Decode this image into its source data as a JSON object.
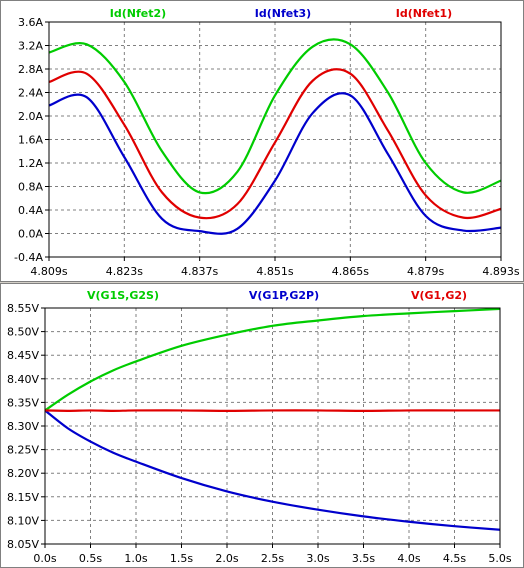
{
  "chart_data": [
    {
      "type": "line",
      "grid": true,
      "xlim": [
        4.809,
        4.893
      ],
      "ylim": [
        -0.4,
        3.6
      ],
      "x_ticks": [
        "4.809s",
        "4.823s",
        "4.837s",
        "4.851s",
        "4.865s",
        "4.879s",
        "4.893s"
      ],
      "y_ticks": [
        "3.6A",
        "3.2A",
        "2.8A",
        "2.4A",
        "2.0A",
        "1.6A",
        "1.2A",
        "0.8A",
        "0.4A",
        "0.0A",
        "-0.4A"
      ],
      "x": [
        4.809,
        4.816,
        4.823,
        4.83,
        4.837,
        4.844,
        4.851,
        4.858,
        4.865,
        4.872,
        4.879,
        4.886,
        4.893
      ],
      "series": [
        {
          "name": "Id(Nfet2)",
          "color": "#00cc00",
          "values": [
            3.08,
            3.22,
            2.58,
            1.4,
            0.7,
            1.05,
            2.35,
            3.18,
            3.22,
            2.4,
            1.2,
            0.7,
            0.9
          ]
        },
        {
          "name": "Id(Nfet3)",
          "color": "#0000cc",
          "values": [
            2.18,
            2.32,
            1.3,
            0.25,
            0.04,
            0.08,
            0.9,
            2.05,
            2.35,
            1.35,
            0.3,
            0.05,
            0.1
          ]
        },
        {
          "name": "Id(Nfet1)",
          "color": "#e00000",
          "values": [
            2.58,
            2.72,
            1.85,
            0.7,
            0.27,
            0.5,
            1.55,
            2.6,
            2.72,
            1.75,
            0.65,
            0.27,
            0.42
          ]
        }
      ]
    },
    {
      "type": "line",
      "grid": true,
      "xlim": [
        0.0,
        5.0
      ],
      "ylim": [
        8.05,
        8.58
      ],
      "x_ticks": [
        "0.0s",
        "0.5s",
        "1.0s",
        "1.5s",
        "2.0s",
        "2.5s",
        "3.0s",
        "3.5s",
        "4.0s",
        "4.5s",
        "5.0s"
      ],
      "y_ticks": [
        "8.55V",
        "8.50V",
        "8.45V",
        "8.40V",
        "8.35V",
        "8.30V",
        "8.25V",
        "8.20V",
        "8.15V",
        "8.10V",
        "8.05V"
      ],
      "x": [
        0.0,
        0.25,
        0.5,
        0.75,
        1.0,
        1.5,
        2.0,
        2.5,
        3.0,
        3.5,
        4.0,
        4.5,
        5.0
      ],
      "series": [
        {
          "name": "V(G1S,G2S)",
          "color": "#00cc00",
          "values": [
            8.35,
            8.385,
            8.415,
            8.44,
            8.46,
            8.495,
            8.52,
            8.54,
            8.552,
            8.562,
            8.568,
            8.573,
            8.578
          ]
        },
        {
          "name": "V(G1P,G2P)",
          "color": "#0000cc",
          "values": [
            8.35,
            8.31,
            8.28,
            8.255,
            8.235,
            8.198,
            8.168,
            8.145,
            8.127,
            8.112,
            8.1,
            8.09,
            8.082
          ]
        },
        {
          "name": "V(G1,G2)",
          "color": "#e00000",
          "values": [
            8.35,
            8.349,
            8.35,
            8.349,
            8.35,
            8.35,
            8.349,
            8.35,
            8.35,
            8.349,
            8.35,
            8.35,
            8.35
          ]
        }
      ]
    }
  ]
}
